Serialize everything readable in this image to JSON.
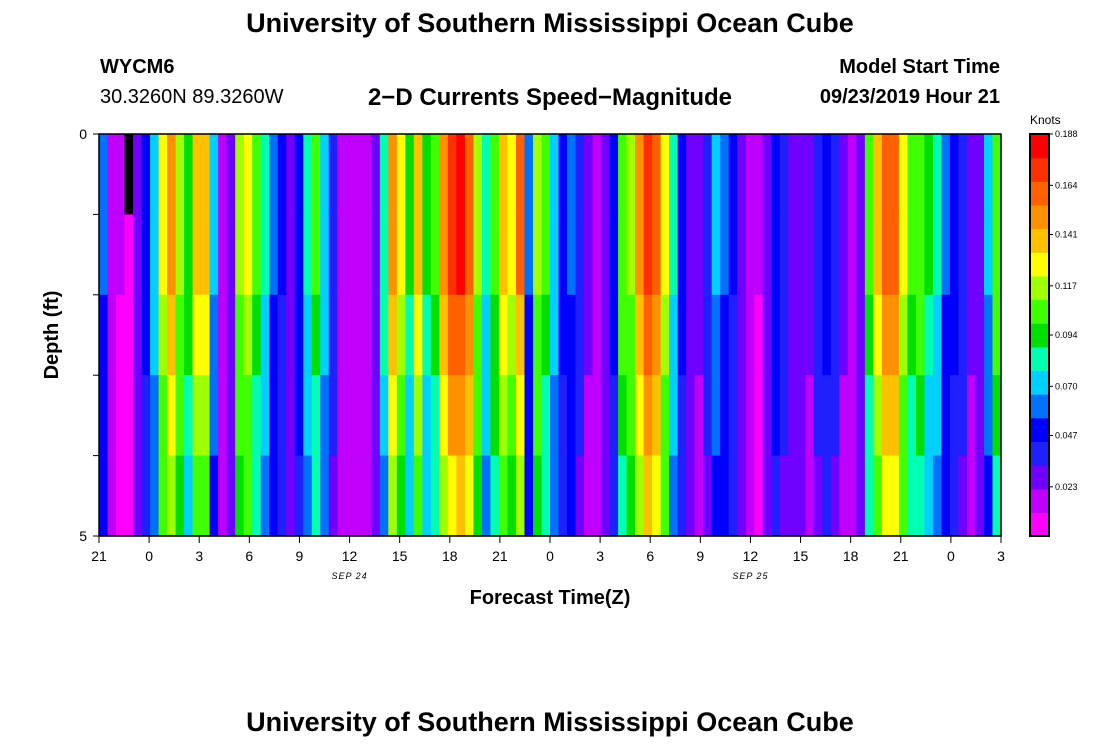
{
  "page": {
    "title_top": "University of Southern Mississippi Ocean Cube",
    "title_bottom": "University of Southern Mississippi Ocean Cube",
    "station_id": "WYCM6",
    "station_coords": "30.3260N 89.3260W",
    "product_title": "2−D Currents Speed−Magnitude",
    "model_start_label": "Model Start Time",
    "model_start_value": "09/23/2019 Hour 21"
  },
  "chart_data": {
    "type": "heatmap",
    "title": "2-D Currents Speed-Magnitude",
    "xlabel": "Forecast Time(Z)",
    "ylabel": "Depth (ft)",
    "x_range_hours": [
      0,
      54
    ],
    "x_tick_labels": [
      "21",
      "0",
      "3",
      "6",
      "9",
      "12",
      "15",
      "18",
      "21",
      "0",
      "3",
      "6",
      "9",
      "12",
      "15",
      "18",
      "21",
      "0",
      "3"
    ],
    "date_labels": [
      {
        "text": "SEP 24",
        "hour": 15
      },
      {
        "text": "SEP 25",
        "hour": 39
      }
    ],
    "y_range_ft": [
      0,
      5
    ],
    "y_tick_labels": [
      {
        "depth": 0,
        "label": "0"
      },
      {
        "depth": 1,
        "label": ""
      },
      {
        "depth": 2,
        "label": ""
      },
      {
        "depth": 3,
        "label": ""
      },
      {
        "depth": 4,
        "label": ""
      },
      {
        "depth": 5,
        "label": "5"
      }
    ],
    "rows_depth_ft": [
      0.5,
      1.5,
      2.5,
      3.5,
      4.5
    ],
    "colorbar": {
      "unit": "Knots",
      "min": 0,
      "max": 0.188,
      "tick_values": [
        0.188,
        0.164,
        0.141,
        0.117,
        0.094,
        0.07,
        0.047,
        0.023
      ],
      "colors": [
        "#ff00ff",
        "#c000ff",
        "#7000ff",
        "#2020ff",
        "#0000ff",
        "#0070ff",
        "#00d0ff",
        "#00ffb0",
        "#00e000",
        "#40ff00",
        "#a0ff00",
        "#ffff00",
        "#ffc000",
        "#ff9000",
        "#ff6000",
        "#ff3000",
        "#ff0000"
      ]
    },
    "hourly_speed_knots": [
      0.06,
      0.015,
      0.012,
      0.005,
      0.03,
      0.05,
      0.075,
      0.13,
      0.15,
      0.12,
      0.098,
      0.14,
      0.135,
      0.07,
      0.016,
      0.03,
      0.118,
      0.13,
      0.1,
      0.08,
      0.06,
      0.045,
      0.03,
      0.055,
      0.08,
      0.1,
      0.075,
      0.04,
      0.02,
      0.018,
      0.018,
      0.02,
      0.03,
      0.085,
      0.15,
      0.125,
      0.09,
      0.135,
      0.09,
      0.102,
      0.15,
      0.17,
      0.18,
      0.16,
      0.12,
      0.08,
      0.105,
      0.14,
      0.125,
      0.155,
      0.06,
      0.12,
      0.1,
      0.075,
      0.05,
      0.06,
      0.04,
      0.025,
      0.02,
      0.03,
      0.05,
      0.11,
      0.12,
      0.15,
      0.175,
      0.16,
      0.13,
      0.08,
      0.05,
      0.03,
      0.025,
      0.04,
      0.07,
      0.06,
      0.045,
      0.03,
      0.015,
      0.012,
      0.03,
      0.055,
      0.04,
      0.03,
      0.03,
      0.025,
      0.04,
      0.05,
      0.04,
      0.025,
      0.018,
      0.03,
      0.1,
      0.14,
      0.16,
      0.165,
      0.13,
      0.1,
      0.11,
      0.09,
      0.08,
      0.06,
      0.05,
      0.04,
      0.025,
      0.03,
      0.07,
      0.11
    ],
    "depth_factors": [
      1.0,
      1.0,
      0.92,
      0.85,
      0.78
    ],
    "fixed_cells": [
      {
        "col": 3,
        "row": 0,
        "value": -1
      }
    ]
  }
}
